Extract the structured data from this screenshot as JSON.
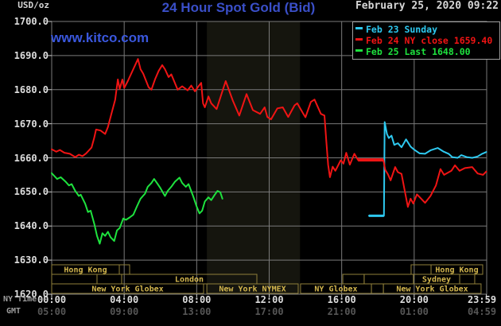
{
  "header": {
    "unit": "USD/oz",
    "title": "24 Hour Spot Gold (Bid)",
    "datetime": "February 25, 2020 09:22",
    "watermark": "www.kitco.com"
  },
  "legend": {
    "items": [
      {
        "label": "Feb 23 Sunday",
        "color": "#2ec9f0"
      },
      {
        "label": "Feb 24 NY close 1659.40",
        "color": "#f01414"
      },
      {
        "label": "Feb 25 Last 1648.00",
        "color": "#1ee23e"
      }
    ]
  },
  "axes": {
    "ny_caption": "NY Time",
    "gmt_caption": "GMT",
    "y_ticks": [
      {
        "v": 1700,
        "label": "1700.0"
      },
      {
        "v": 1690,
        "label": "1690.0"
      },
      {
        "v": 1680,
        "label": "1680.0"
      },
      {
        "v": 1670,
        "label": "1670.0"
      },
      {
        "v": 1660,
        "label": "1660.0"
      },
      {
        "v": 1650,
        "label": "1650.0"
      },
      {
        "v": 1640,
        "label": "1640.0"
      },
      {
        "v": 1630,
        "label": "1630.0"
      },
      {
        "v": 1620,
        "label": "1620.0"
      }
    ],
    "x_ticks": [
      {
        "h": 0,
        "ny": "00:00",
        "gmt": "05:00"
      },
      {
        "h": 4,
        "ny": "04:00",
        "gmt": "09:00"
      },
      {
        "h": 8,
        "ny": "08:00",
        "gmt": "13:00"
      },
      {
        "h": 12,
        "ny": "12:00",
        "gmt": "17:00"
      },
      {
        "h": 16,
        "ny": "16:00",
        "gmt": "21:00"
      },
      {
        "h": 20,
        "ny": "20:00",
        "gmt": "01:00"
      },
      {
        "h": 23.983,
        "ny": "23:59",
        "gmt": "04:59"
      }
    ]
  },
  "sessions": {
    "rows": [
      {
        "boxes": [
          {
            "h1": 0,
            "h2": 3.73,
            "label": "Hong Kong"
          },
          {
            "h1": 3.73,
            "h2": 4.3,
            "label": ""
          },
          {
            "h1": 19.83,
            "h2": 20.93,
            "label": ""
          },
          {
            "h1": 20.93,
            "h2": 23.78,
            "label": "Hong Kong"
          }
        ]
      },
      {
        "boxes": [
          {
            "h1": 0,
            "h2": 2.5,
            "label": ""
          },
          {
            "h1": 2.5,
            "h2": 3.86,
            "label": ""
          },
          {
            "h1": 3.86,
            "h2": 11.32,
            "label": "London"
          },
          {
            "h1": 16.06,
            "h2": 17.24,
            "label": ""
          },
          {
            "h1": 17.24,
            "h2": 19.96,
            "label": ""
          },
          {
            "h1": 19.96,
            "h2": 22.51,
            "label": "Sydney"
          },
          {
            "h1": 22.51,
            "h2": 23.34,
            "label": ""
          }
        ]
      },
      {
        "boxes": [
          {
            "h1": 0,
            "h2": 8.38,
            "label": "New York Globex"
          },
          {
            "h1": 8.56,
            "h2": 13.6,
            "label": "New York NYMEX"
          },
          {
            "h1": 13.73,
            "h2": 17.64,
            "label": "NY Globex"
          },
          {
            "h1": 17.64,
            "h2": 18.3,
            "label": ""
          },
          {
            "h1": 18.3,
            "h2": 23.69,
            "label": "New York Globex"
          }
        ]
      }
    ]
  },
  "chart_data": {
    "type": "line",
    "title": "24 Hour Spot Gold (Bid)",
    "ylabel": "USD/oz",
    "ylim": [
      1620,
      1700
    ],
    "xlim_hours": [
      0,
      24
    ],
    "grid": true,
    "y_gridlines": [
      1630,
      1640,
      1650,
      1660,
      1670,
      1680,
      1690
    ],
    "x_gridlines_hours": [
      4,
      8,
      12,
      16,
      20
    ],
    "nymex_band_hours": [
      8.56,
      13.7
    ],
    "legend_position": "top-right",
    "series": [
      {
        "name": "Feb 23 Sunday",
        "color": "#2ec9f0",
        "width": 2,
        "points": [
          [
            17.5,
            1643.0
          ],
          [
            18.33,
            1643.0
          ],
          [
            18.37,
            1670.5
          ],
          [
            18.5,
            1667.0
          ],
          [
            18.6,
            1665.8
          ],
          [
            18.75,
            1666.5
          ],
          [
            18.9,
            1663.8
          ],
          [
            19.1,
            1664.3
          ],
          [
            19.3,
            1663.1
          ],
          [
            19.55,
            1665.4
          ],
          [
            19.8,
            1663.3
          ],
          [
            20.0,
            1662.4
          ],
          [
            20.3,
            1661.3
          ],
          [
            20.6,
            1661.2
          ],
          [
            20.9,
            1662.2
          ],
          [
            21.3,
            1662.9
          ],
          [
            21.6,
            1661.9
          ],
          [
            21.9,
            1661.2
          ],
          [
            22.1,
            1660.2
          ],
          [
            22.4,
            1660.0
          ],
          [
            22.6,
            1660.8
          ],
          [
            22.9,
            1660.2
          ],
          [
            23.2,
            1660.0
          ],
          [
            23.5,
            1660.4
          ],
          [
            23.75,
            1661.2
          ],
          [
            23.98,
            1661.7
          ]
        ],
        "flat_segment": {
          "from": 17.5,
          "to": 18.33,
          "value": 1643.0,
          "width": 3
        }
      },
      {
        "name": "Feb 24 NY close 1659.40",
        "color": "#f01414",
        "width": 2,
        "points": [
          [
            0,
            1662.5
          ],
          [
            0.25,
            1661.8
          ],
          [
            0.45,
            1662.3
          ],
          [
            0.7,
            1661.5
          ],
          [
            1.0,
            1661.2
          ],
          [
            1.3,
            1660.2
          ],
          [
            1.5,
            1660.9
          ],
          [
            1.7,
            1660.5
          ],
          [
            1.9,
            1661.3
          ],
          [
            2.2,
            1663.0
          ],
          [
            2.35,
            1666.0
          ],
          [
            2.45,
            1668.3
          ],
          [
            2.7,
            1668.0
          ],
          [
            2.95,
            1667.0
          ],
          [
            3.1,
            1669.0
          ],
          [
            3.3,
            1673.0
          ],
          [
            3.5,
            1677.0
          ],
          [
            3.65,
            1683.0
          ],
          [
            3.75,
            1680.2
          ],
          [
            3.9,
            1683.0
          ],
          [
            4.0,
            1680.5
          ],
          [
            4.2,
            1682.5
          ],
          [
            4.5,
            1686.0
          ],
          [
            4.76,
            1689.0
          ],
          [
            4.9,
            1686.0
          ],
          [
            5.05,
            1684.7
          ],
          [
            5.35,
            1680.7
          ],
          [
            5.5,
            1680.0
          ],
          [
            5.7,
            1683.0
          ],
          [
            5.9,
            1685.5
          ],
          [
            6.1,
            1687.2
          ],
          [
            6.25,
            1686.0
          ],
          [
            6.45,
            1683.7
          ],
          [
            6.6,
            1684.5
          ],
          [
            6.95,
            1680.0
          ],
          [
            7.2,
            1681.0
          ],
          [
            7.5,
            1679.8
          ],
          [
            7.7,
            1681.2
          ],
          [
            7.9,
            1679.5
          ],
          [
            8.1,
            1681.0
          ],
          [
            8.25,
            1682.0
          ],
          [
            8.35,
            1676.0
          ],
          [
            8.45,
            1674.8
          ],
          [
            8.65,
            1678.0
          ],
          [
            8.8,
            1676.0
          ],
          [
            9.1,
            1674.3
          ],
          [
            9.6,
            1682.5
          ],
          [
            10.0,
            1676.7
          ],
          [
            10.35,
            1672.4
          ],
          [
            10.75,
            1678.7
          ],
          [
            11.1,
            1674.0
          ],
          [
            11.5,
            1672.9
          ],
          [
            11.75,
            1674.8
          ],
          [
            11.9,
            1672.0
          ],
          [
            12.1,
            1671.3
          ],
          [
            12.45,
            1674.5
          ],
          [
            12.75,
            1674.8
          ],
          [
            13.05,
            1672.0
          ],
          [
            13.4,
            1675.4
          ],
          [
            13.55,
            1676.0
          ],
          [
            13.85,
            1673.2
          ],
          [
            14.0,
            1671.9
          ],
          [
            14.3,
            1676.4
          ],
          [
            14.5,
            1677.1
          ],
          [
            14.85,
            1672.9
          ],
          [
            15.05,
            1672.4
          ],
          [
            15.15,
            1665.0
          ],
          [
            15.25,
            1658.0
          ],
          [
            15.35,
            1654.3
          ],
          [
            15.5,
            1657.4
          ],
          [
            15.65,
            1656.2
          ],
          [
            15.95,
            1659.3
          ],
          [
            16.1,
            1658.3
          ],
          [
            16.25,
            1661.5
          ],
          [
            16.45,
            1658.0
          ],
          [
            16.7,
            1661.2
          ],
          [
            16.9,
            1659.4
          ],
          [
            18.3,
            1659.4
          ],
          [
            18.4,
            1656.5
          ],
          [
            18.55,
            1655.2
          ],
          [
            18.7,
            1653.4
          ],
          [
            18.95,
            1657.3
          ],
          [
            19.1,
            1655.8
          ],
          [
            19.3,
            1655.3
          ],
          [
            19.5,
            1649.8
          ],
          [
            19.65,
            1645.6
          ],
          [
            19.8,
            1648.0
          ],
          [
            19.95,
            1646.6
          ],
          [
            20.15,
            1649.3
          ],
          [
            20.35,
            1648.2
          ],
          [
            20.6,
            1646.8
          ],
          [
            20.9,
            1648.8
          ],
          [
            21.2,
            1651.9
          ],
          [
            21.45,
            1656.7
          ],
          [
            21.65,
            1655.0
          ],
          [
            22.05,
            1656.2
          ],
          [
            22.25,
            1657.8
          ],
          [
            22.5,
            1656.2
          ],
          [
            22.8,
            1657.0
          ],
          [
            23.2,
            1657.3
          ],
          [
            23.5,
            1655.4
          ],
          [
            23.8,
            1655.0
          ],
          [
            23.98,
            1656.0
          ]
        ],
        "flat_segment": {
          "from": 16.9,
          "to": 18.3,
          "value": 1659.4,
          "width": 4
        }
      },
      {
        "name": "Feb 25 Last 1648.00",
        "color": "#1ee23e",
        "width": 2,
        "points": [
          [
            0,
            1655.5
          ],
          [
            0.3,
            1653.8
          ],
          [
            0.5,
            1654.3
          ],
          [
            0.75,
            1653.1
          ],
          [
            0.95,
            1651.9
          ],
          [
            1.1,
            1652.3
          ],
          [
            1.3,
            1650.3
          ],
          [
            1.5,
            1648.8
          ],
          [
            1.6,
            1649.2
          ],
          [
            1.85,
            1646.5
          ],
          [
            2.0,
            1644.1
          ],
          [
            2.15,
            1644.5
          ],
          [
            2.35,
            1640.6
          ],
          [
            2.5,
            1637.1
          ],
          [
            2.65,
            1634.8
          ],
          [
            2.8,
            1637.9
          ],
          [
            2.95,
            1637.1
          ],
          [
            3.1,
            1638.3
          ],
          [
            3.25,
            1636.7
          ],
          [
            3.45,
            1635.6
          ],
          [
            3.6,
            1638.7
          ],
          [
            3.75,
            1639.4
          ],
          [
            3.95,
            1642.2
          ],
          [
            4.1,
            1641.8
          ],
          [
            4.3,
            1642.5
          ],
          [
            4.5,
            1643.3
          ],
          [
            4.7,
            1645.7
          ],
          [
            4.9,
            1648.0
          ],
          [
            5.15,
            1649.5
          ],
          [
            5.3,
            1651.5
          ],
          [
            5.5,
            1652.6
          ],
          [
            5.65,
            1653.8
          ],
          [
            5.85,
            1652.3
          ],
          [
            6.0,
            1651.1
          ],
          [
            6.25,
            1648.8
          ],
          [
            6.4,
            1650.3
          ],
          [
            6.6,
            1651.5
          ],
          [
            6.8,
            1653.0
          ],
          [
            7.05,
            1654.2
          ],
          [
            7.2,
            1652.6
          ],
          [
            7.4,
            1651.5
          ],
          [
            7.55,
            1652.3
          ],
          [
            7.8,
            1648.8
          ],
          [
            8.0,
            1645.7
          ],
          [
            8.15,
            1643.7
          ],
          [
            8.3,
            1644.5
          ],
          [
            8.45,
            1647.2
          ],
          [
            8.65,
            1648.4
          ],
          [
            8.8,
            1647.6
          ],
          [
            9.0,
            1649.2
          ],
          [
            9.15,
            1650.3
          ],
          [
            9.3,
            1649.9
          ],
          [
            9.42,
            1648.0
          ]
        ]
      }
    ]
  },
  "colors": {
    "background": "#000000",
    "grid": "#7a7a7a",
    "tick": "#cfcfcf",
    "band": "#15150e",
    "session_border": "#8f7f3a",
    "session_text": "#d4b74e",
    "legend_border": "#a0a0a0",
    "title_blue": "#3a4fc8",
    "kitco_blue": "#3a57dd",
    "text_light": "#d6d6d6",
    "text_dim": "#9e9e9e",
    "text_dark": "#565656"
  }
}
